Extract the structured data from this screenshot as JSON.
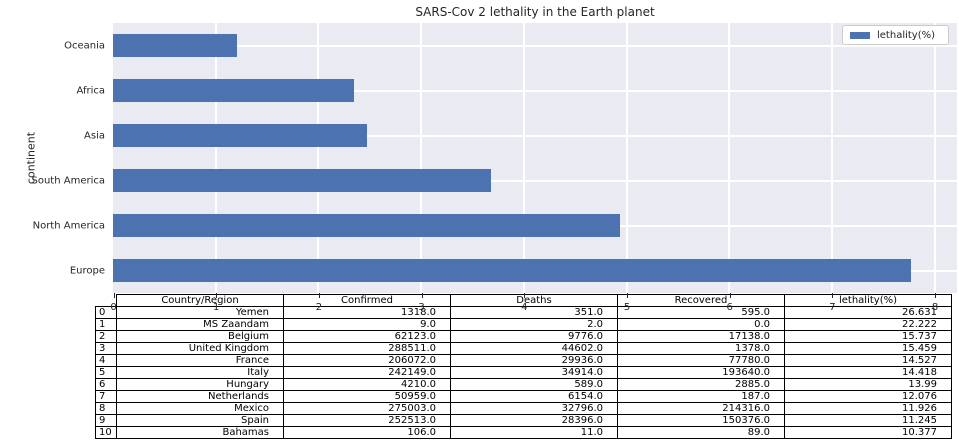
{
  "chart_data": {
    "type": "bar",
    "orientation": "horizontal",
    "title": "SARS-Cov 2 lethality in the Earth planet",
    "xlabel": "",
    "ylabel": "continent",
    "categories": [
      "Oceania",
      "Africa",
      "Asia",
      "South America",
      "North America",
      "Europe"
    ],
    "series": [
      {
        "name": "lethality(%)",
        "values": [
          1.21,
          2.35,
          2.47,
          3.68,
          4.94,
          7.77
        ]
      }
    ],
    "legend_label": "lethality(%)",
    "legend_position": "upper right",
    "xlim": [
      0,
      8.21
    ],
    "x_ticks": [
      0,
      1,
      2,
      3,
      4,
      5,
      6,
      7,
      8
    ],
    "grid": true,
    "bar_color": "#4C72B0",
    "plot_background": "#EAEAF2",
    "grid_color": "#ffffff"
  },
  "table": {
    "columns": [
      "Country/Region",
      "Confirmed",
      "Deaths",
      "Recovered",
      "lethality(%)"
    ],
    "row_indices": [
      "0",
      "1",
      "2",
      "3",
      "4",
      "5",
      "6",
      "7",
      "8",
      "9",
      "10"
    ],
    "rows": [
      [
        "Yemen",
        "1318.0",
        "351.0",
        "595.0",
        "26.631"
      ],
      [
        "MS Zaandam",
        "9.0",
        "2.0",
        "0.0",
        "22.222"
      ],
      [
        "Belgium",
        "62123.0",
        "9776.0",
        "17138.0",
        "15.737"
      ],
      [
        "United Kingdom",
        "288511.0",
        "44602.0",
        "1378.0",
        "15.459"
      ],
      [
        "France",
        "206072.0",
        "29936.0",
        "77780.0",
        "14.527"
      ],
      [
        "Italy",
        "242149.0",
        "34914.0",
        "193640.0",
        "14.418"
      ],
      [
        "Hungary",
        "4210.0",
        "589.0",
        "2885.0",
        "13.99"
      ],
      [
        "Netherlands",
        "50959.0",
        "6154.0",
        "187.0",
        "12.076"
      ],
      [
        "Mexico",
        "275003.0",
        "32796.0",
        "214316.0",
        "11.926"
      ],
      [
        "Spain",
        "252513.0",
        "28396.0",
        "150376.0",
        "11.245"
      ],
      [
        "Bahamas",
        "106.0",
        "11.0",
        "89.0",
        "10.377"
      ]
    ]
  }
}
